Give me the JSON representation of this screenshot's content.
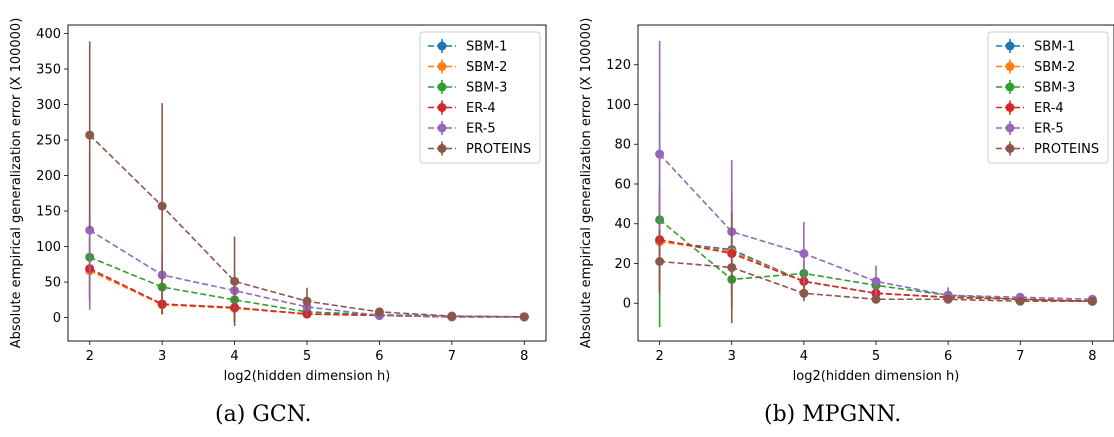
{
  "captions": [
    "(a) GCN.",
    "(b) MPGNN."
  ],
  "chart_data": [
    {
      "type": "line",
      "xlabel": "log2(hidden dimension h)",
      "ylabel": "Absolute empirical generalization error (X 100000)",
      "xlim": [
        1.7,
        8.3
      ],
      "ylim": [
        -33,
        412
      ],
      "xticks": [
        2,
        3,
        4,
        5,
        6,
        7,
        8
      ],
      "yticks": [
        0,
        50,
        100,
        150,
        200,
        250,
        300,
        350,
        400
      ],
      "grid": false,
      "legend_position": "top-right",
      "x": [
        2,
        3,
        4,
        5,
        6,
        7,
        8
      ],
      "series": [
        {
          "name": "SBM-1",
          "color": "#1f77b4",
          "values": [
            67,
            19,
            14,
            5,
            3,
            1,
            1
          ],
          "err": [
            45,
            14,
            20,
            6,
            3,
            1,
            1
          ]
        },
        {
          "name": "SBM-2",
          "color": "#ff7f0e",
          "values": [
            66,
            18,
            13,
            5,
            3,
            1,
            1
          ],
          "err": [
            44,
            14,
            20,
            6,
            3,
            1,
            1
          ]
        },
        {
          "name": "SBM-3",
          "color": "#2ca02c",
          "values": [
            85,
            43,
            25,
            8,
            4,
            2,
            1
          ],
          "err": [
            55,
            18,
            15,
            7,
            3,
            1,
            1
          ]
        },
        {
          "name": "ER-4",
          "color": "#d62728",
          "values": [
            69,
            19,
            14,
            5,
            3,
            1,
            1
          ],
          "err": [
            45,
            14,
            20,
            6,
            3,
            1,
            1
          ]
        },
        {
          "name": "ER-5",
          "color": "#9467bd",
          "values": [
            123,
            60,
            38,
            15,
            3,
            1,
            1
          ],
          "err": [
            112,
            30,
            23,
            12,
            4,
            1,
            1
          ]
        },
        {
          "name": "PROTEINS",
          "color": "#8c564b",
          "values": [
            257,
            157,
            51,
            23,
            8,
            2,
            1
          ],
          "err": [
            132,
            145,
            63,
            19,
            5,
            2,
            1
          ]
        }
      ]
    },
    {
      "type": "line",
      "xlabel": "log2(hidden dimension h)",
      "ylabel": "Absolute empirical generalization error (X 100000)",
      "xlim": [
        1.7,
        8.3
      ],
      "ylim": [
        -19,
        140
      ],
      "xticks": [
        2,
        3,
        4,
        5,
        6,
        7,
        8
      ],
      "yticks": [
        0,
        20,
        40,
        60,
        80,
        100,
        120
      ],
      "grid": false,
      "legend_position": "top-right",
      "x": [
        2,
        3,
        4,
        5,
        6,
        7,
        8
      ],
      "series": [
        {
          "name": "SBM-1",
          "color": "#1f77b4",
          "values": [
            31,
            27,
            11,
            5,
            3,
            2,
            1
          ],
          "err": [
            26,
            30,
            6,
            4,
            2,
            1,
            1
          ]
        },
        {
          "name": "SBM-2",
          "color": "#ff7f0e",
          "values": [
            31,
            26,
            11,
            5,
            3,
            2,
            1
          ],
          "err": [
            26,
            30,
            6,
            4,
            2,
            1,
            1
          ]
        },
        {
          "name": "SBM-3",
          "color": "#2ca02c",
          "values": [
            42,
            12,
            15,
            9,
            4,
            2,
            1
          ],
          "err": [
            54,
            8,
            6,
            4,
            2,
            1,
            1
          ]
        },
        {
          "name": "ER-4",
          "color": "#d62728",
          "values": [
            32,
            25,
            11,
            5,
            3,
            2,
            1
          ],
          "err": [
            26,
            28,
            6,
            4,
            2,
            1,
            1
          ]
        },
        {
          "name": "ER-5",
          "color": "#9467bd",
          "values": [
            75,
            36,
            25,
            11,
            4,
            3,
            2
          ],
          "err": [
            57,
            36,
            16,
            8,
            4,
            1,
            1
          ]
        },
        {
          "name": "PROTEINS",
          "color": "#8c564b",
          "values": [
            21,
            18,
            5,
            2,
            2,
            1,
            1
          ],
          "err": [
            16,
            28,
            4,
            2,
            2,
            1,
            1
          ]
        }
      ]
    }
  ]
}
